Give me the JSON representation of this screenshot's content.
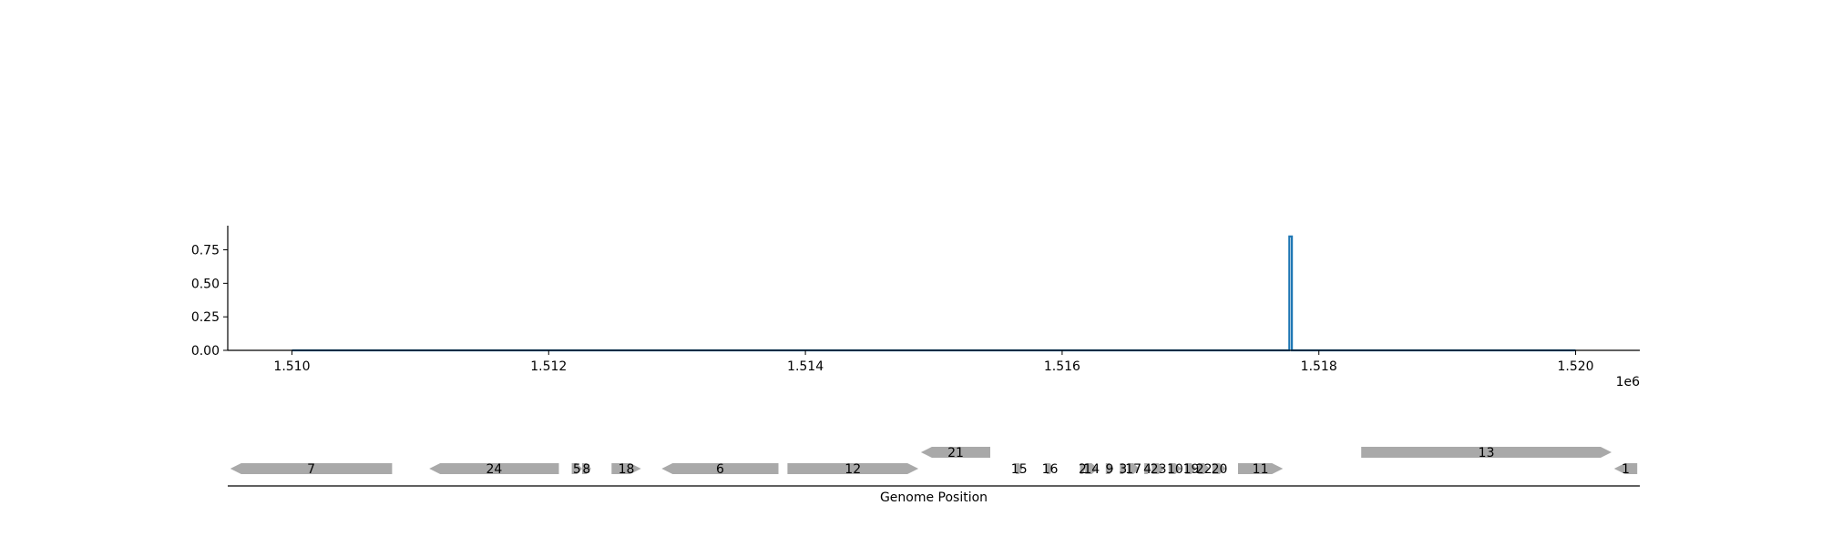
{
  "chart_data": [
    {
      "type": "line",
      "title": "",
      "xlabel": "",
      "ylabel": "",
      "x_offset_label": "1e6",
      "xlim": [
        1509500,
        1520500
      ],
      "ylim": [
        0,
        0.93
      ],
      "x_ticks": [
        1510000,
        1512000,
        1514000,
        1516000,
        1518000,
        1520000
      ],
      "x_tick_labels": [
        "1.510",
        "1.512",
        "1.514",
        "1.516",
        "1.518",
        "1.520"
      ],
      "y_ticks": [
        0,
        0.25,
        0.5,
        0.75
      ],
      "y_tick_labels": [
        "0.00",
        "0.25",
        "0.50",
        "0.75"
      ],
      "grid": false,
      "series": [
        {
          "color": "#1f77b4",
          "x": [
            1510000,
            1517770,
            1517770,
            1517790,
            1517790,
            1520000
          ],
          "y": [
            0,
            0,
            0.85,
            0.85,
            0,
            0
          ]
        }
      ]
    },
    {
      "type": "gene-track",
      "xlabel": "Genome Position",
      "xlim": [
        1509500,
        1520500
      ],
      "feature_color": "#a9a9a9",
      "features": [
        {
          "label": "7",
          "start": 1509520,
          "end": 1510780,
          "strand": -1,
          "row": 0
        },
        {
          "label": "24",
          "start": 1511070,
          "end": 1512080,
          "strand": -1,
          "row": 0
        },
        {
          "label": "5",
          "start": 1512180,
          "end": 1512260,
          "strand": 1,
          "row": 0
        },
        {
          "label": "8",
          "start": 1512260,
          "end": 1512330,
          "strand": 1,
          "row": 0
        },
        {
          "label": "18",
          "start": 1512490,
          "end": 1512720,
          "strand": 1,
          "row": 0
        },
        {
          "label": "6",
          "start": 1512880,
          "end": 1513790,
          "strand": -1,
          "row": 0
        },
        {
          "label": "12",
          "start": 1513860,
          "end": 1514880,
          "strand": 1,
          "row": 0
        },
        {
          "label": "21",
          "start": 1514900,
          "end": 1515440,
          "strand": -1,
          "row": 1
        },
        {
          "label": "15",
          "start": 1515640,
          "end": 1515690,
          "strand": 1,
          "row": 0
        },
        {
          "label": "16",
          "start": 1515880,
          "end": 1515930,
          "strand": 1,
          "row": 0
        },
        {
          "label": "2",
          "start": 1516140,
          "end": 1516180,
          "strand": 1,
          "row": 0
        },
        {
          "label": "14",
          "start": 1516180,
          "end": 1516280,
          "strand": 1,
          "row": 0
        },
        {
          "label": "9",
          "start": 1516340,
          "end": 1516400,
          "strand": 1,
          "row": 0
        },
        {
          "label": "3",
          "start": 1516450,
          "end": 1516500,
          "strand": 1,
          "row": 0
        },
        {
          "label": "17",
          "start": 1516510,
          "end": 1516600,
          "strand": 1,
          "row": 0
        },
        {
          "label": "4",
          "start": 1516640,
          "end": 1516690,
          "strand": 1,
          "row": 0
        },
        {
          "label": "23",
          "start": 1516700,
          "end": 1516800,
          "strand": 1,
          "row": 0
        },
        {
          "label": "10",
          "start": 1516830,
          "end": 1516930,
          "strand": 1,
          "row": 0
        },
        {
          "label": "19",
          "start": 1516960,
          "end": 1517050,
          "strand": 1,
          "row": 0
        },
        {
          "label": "22",
          "start": 1517060,
          "end": 1517150,
          "strand": 1,
          "row": 0
        },
        {
          "label": "20",
          "start": 1517170,
          "end": 1517280,
          "strand": 1,
          "row": 0
        },
        {
          "label": "11",
          "start": 1517370,
          "end": 1517720,
          "strand": 1,
          "row": 0
        },
        {
          "label": "13",
          "start": 1518330,
          "end": 1520280,
          "strand": 1,
          "row": 1
        },
        {
          "label": "1",
          "start": 1520300,
          "end": 1520480,
          "strand": -1,
          "row": 0
        }
      ]
    }
  ]
}
